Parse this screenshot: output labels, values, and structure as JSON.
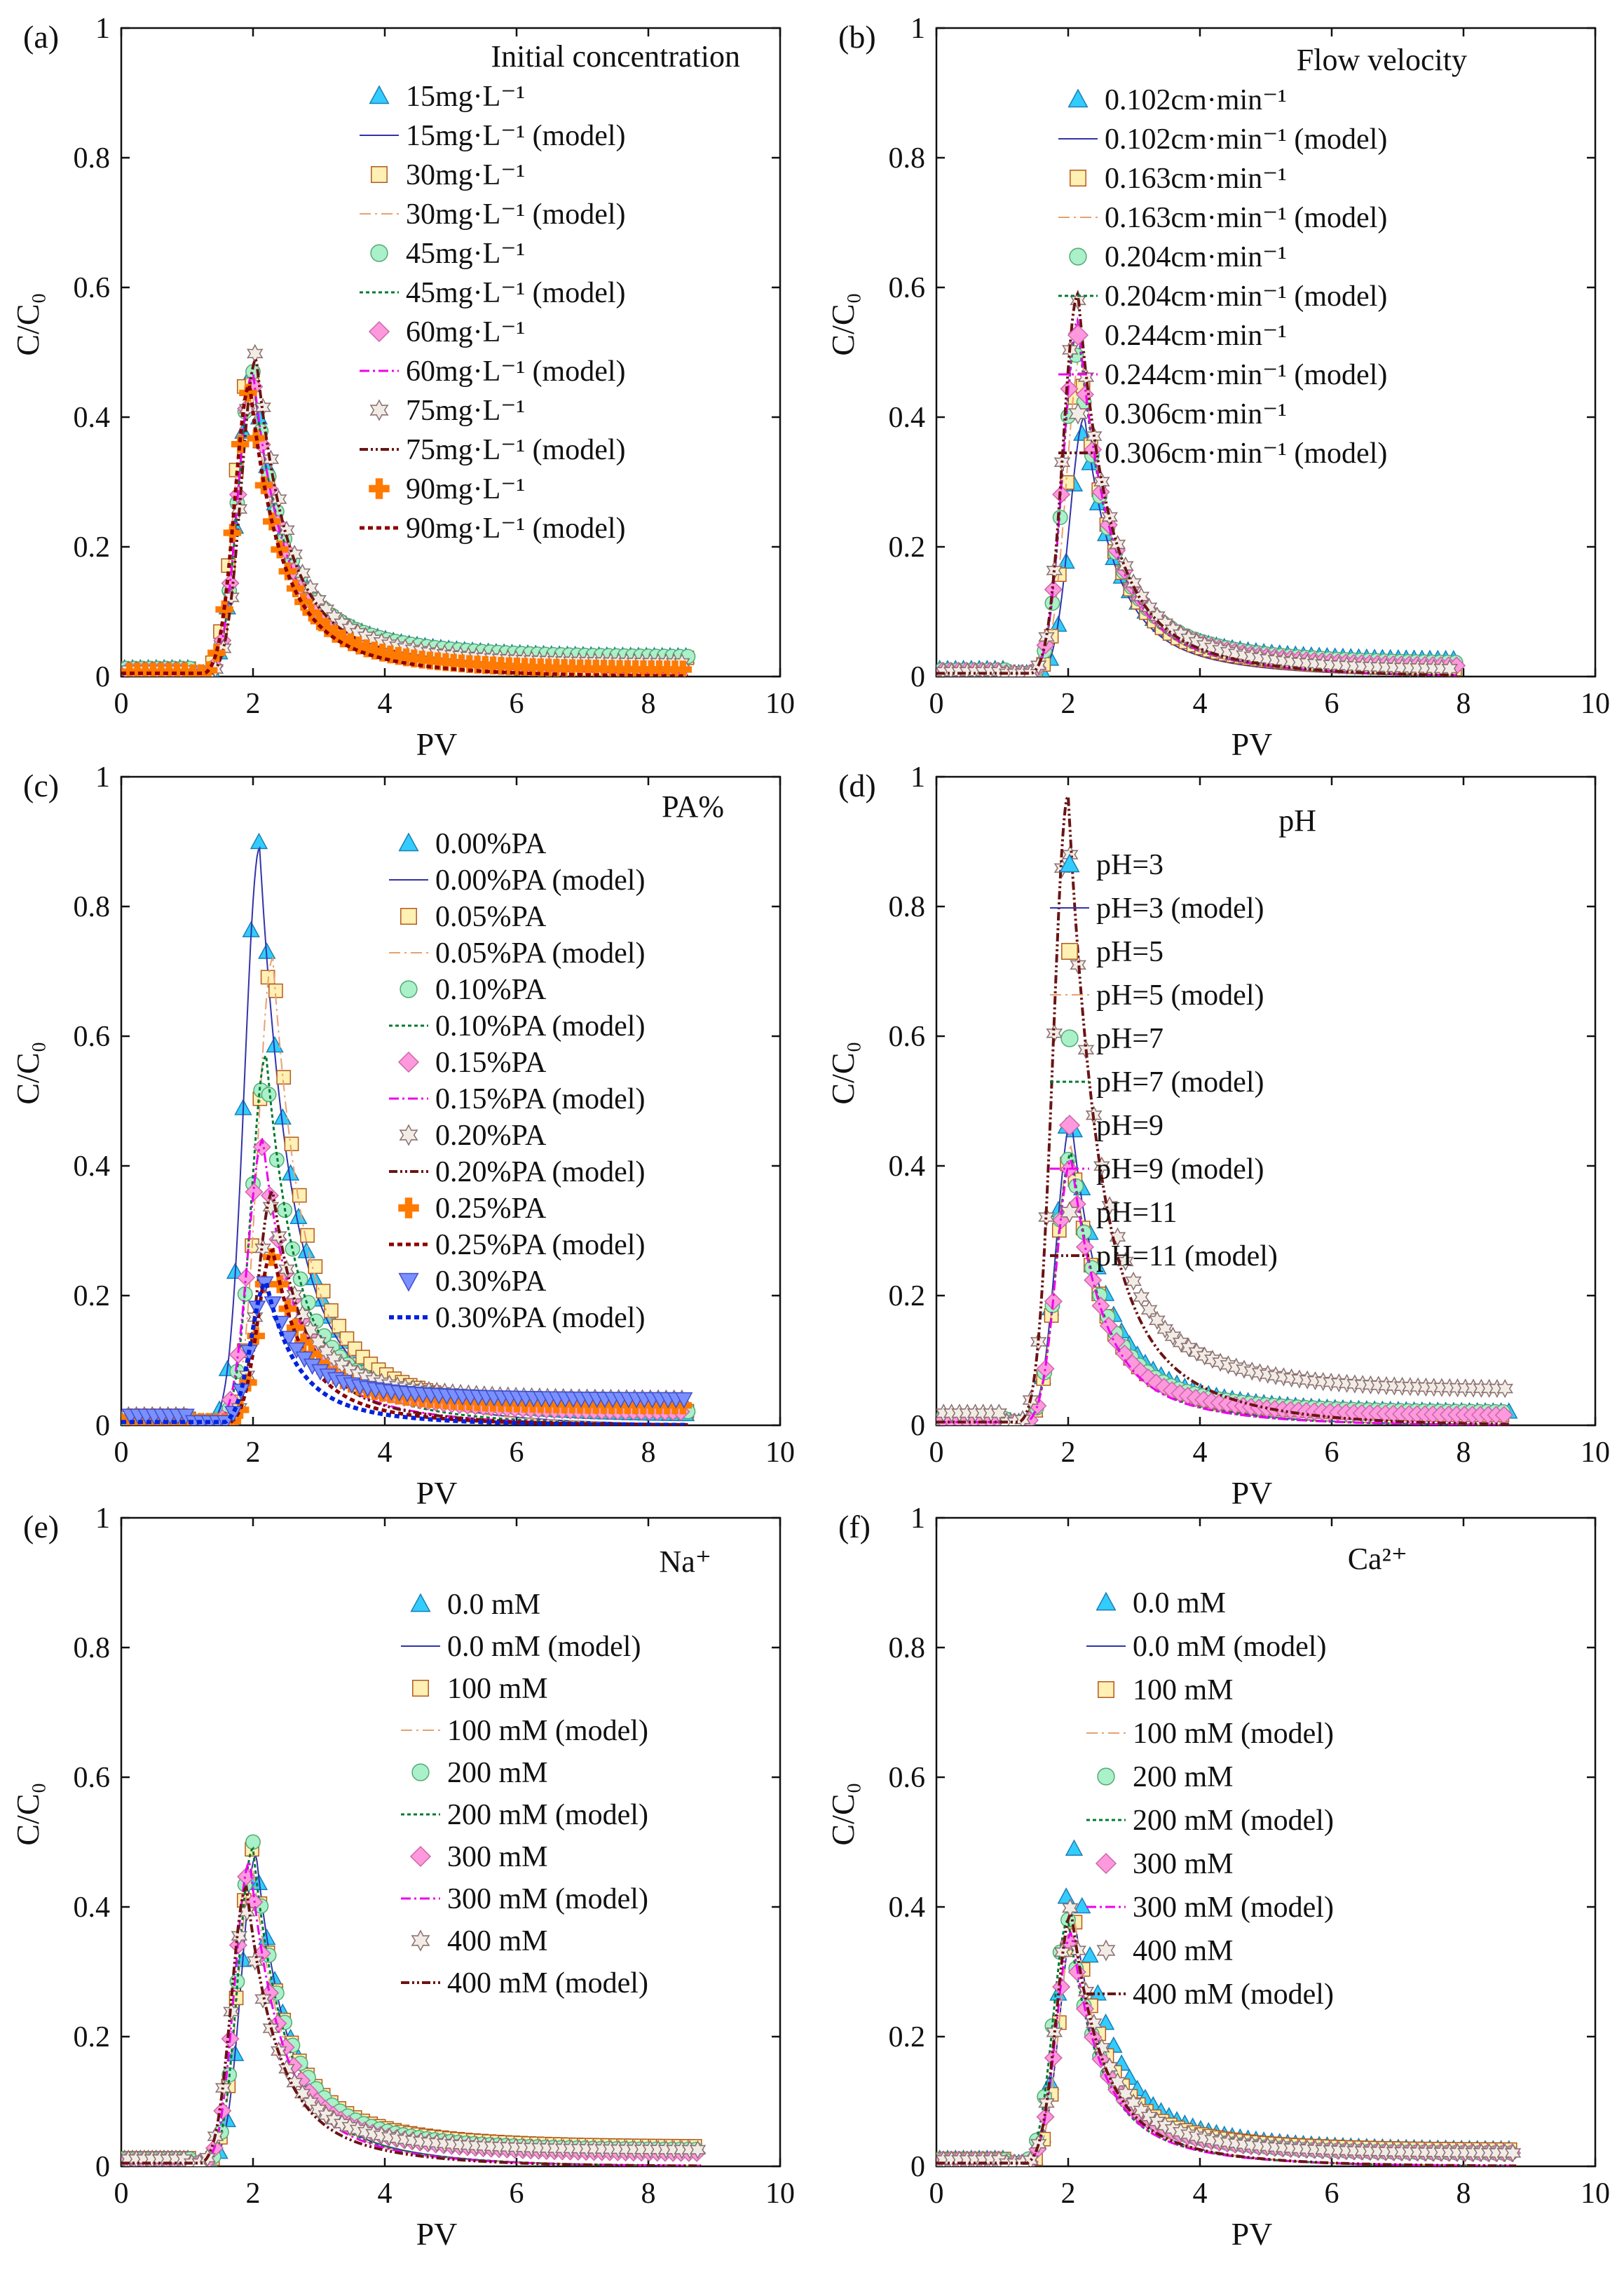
{
  "styles": {
    "s0": {
      "marker": "triangle-up",
      "fill": "#33ccff",
      "stroke": "#1a7fb3",
      "line": "#3333aa",
      "dash": "",
      "width": 2
    },
    "s1": {
      "marker": "square",
      "fill": "#fff0b3",
      "stroke": "#b35a1f",
      "line": "#e8a070",
      "dash": "16 6 3 6",
      "width": 2
    },
    "s2": {
      "marker": "circle",
      "fill": "#aaf0c8",
      "stroke": "#55aa77",
      "line": "#007a33",
      "dash": "5 4",
      "width": 3
    },
    "s3": {
      "marker": "diamond",
      "fill": "#ff99dd",
      "stroke": "#cc66aa",
      "line": "#ee00ee",
      "dash": "14 5 3 5",
      "width": 3
    },
    "s4": {
      "marker": "star",
      "fill": "#f2ece6",
      "stroke": "#8a6f6f",
      "line": "#6b1414",
      "dash": "12 4 3 4 3 4",
      "width": 4
    },
    "s5": {
      "marker": "plus",
      "fill": "#ff7a00",
      "stroke": "#ff7a00",
      "line": "#8b0000",
      "dash": "7 5",
      "width": 5
    },
    "s6": {
      "marker": "triangle-down",
      "fill": "#7a90ff",
      "stroke": "#4050cc",
      "line": "#0022dd",
      "dash": "7 5",
      "width": 6
    }
  },
  "chart_data": [
    {
      "id": "a",
      "panel_label": "(a)",
      "type": "line",
      "xlabel": "PV",
      "ylabel": "C/C₀",
      "xlim": [
        0,
        10
      ],
      "ylim": [
        0,
        1
      ],
      "xticks": [
        0,
        2,
        4,
        6,
        8,
        10
      ],
      "yticks": [
        0,
        0.2,
        0.4,
        0.6,
        0.8,
        1
      ],
      "xtick_labels": [
        "0",
        "2",
        "4",
        "6",
        "8",
        "10"
      ],
      "ytick_labels": [
        "0",
        "0.2",
        "0.4",
        "0.6",
        "0.8",
        "1"
      ],
      "legend_title": "Initial concentration",
      "legend_align": "left",
      "x_end": 8.6,
      "series": [
        {
          "label": "15mg·L⁻¹",
          "model_label": "15mg·L⁻¹ (model)",
          "style": "s0",
          "peak": 0.47,
          "peak_x": 2.0,
          "tail": 0.03,
          "model_peak": 0.46,
          "model_tail": 0.025
        },
        {
          "label": "30mg·L⁻¹",
          "model_label": "30mg·L⁻¹ (model)",
          "style": "s1",
          "peak": 0.48,
          "peak_x": 1.95,
          "tail": 0.028,
          "model_peak": 0.47,
          "model_tail": 0.022
        },
        {
          "label": "45mg·L⁻¹",
          "model_label": "45mg·L⁻¹ (model)",
          "style": "s2",
          "peak": 0.47,
          "peak_x": 2.0,
          "tail": 0.03,
          "model_peak": 0.46,
          "model_tail": 0.025
        },
        {
          "label": "60mg·L⁻¹",
          "model_label": "60mg·L⁻¹ (model)",
          "style": "s3",
          "peak": 0.46,
          "peak_x": 2.0,
          "tail": 0.015,
          "model_peak": 0.47,
          "model_tail": 0.005
        },
        {
          "label": "75mg·L⁻¹",
          "model_label": "75mg·L⁻¹ (model)",
          "style": "s4",
          "peak": 0.5,
          "peak_x": 2.05,
          "tail": 0.02,
          "model_peak": 0.49,
          "model_tail": 0.01
        },
        {
          "label": "90mg·L⁻¹",
          "model_label": "90mg·L⁻¹ (model)",
          "style": "s5",
          "peak": 0.44,
          "peak_x": 1.95,
          "tail": 0.01,
          "model_peak": 0.45,
          "model_tail": 0.0
        }
      ]
    },
    {
      "id": "b",
      "panel_label": "(b)",
      "type": "line",
      "xlabel": "PV",
      "ylabel": "C/C₀",
      "xlim": [
        0,
        10
      ],
      "ylim": [
        0,
        1
      ],
      "xticks": [
        0,
        2,
        4,
        6,
        8,
        10
      ],
      "yticks": [
        0,
        0.2,
        0.4,
        0.6,
        0.8,
        1
      ],
      "xtick_labels": [
        "0",
        "2",
        "4",
        "6",
        "8",
        "10"
      ],
      "ytick_labels": [
        "0",
        "0.2",
        "0.4",
        "0.6",
        "0.8",
        "1"
      ],
      "legend_title": "Flow velocity",
      "legend_align": "left",
      "x_end": 7.9,
      "series": [
        {
          "label": "0.102cm·min⁻¹",
          "model_label": "0.102cm·min⁻¹ (model)",
          "style": "s0",
          "peak": 0.38,
          "peak_x": 2.25,
          "tail": 0.025,
          "model_peak": 0.4,
          "model_tail": 0.0
        },
        {
          "label": "0.163cm·min⁻¹",
          "model_label": "0.163cm·min⁻¹ (model)",
          "style": "s1",
          "peak": 0.47,
          "peak_x": 2.2,
          "tail": 0.01,
          "model_peak": 0.5,
          "model_tail": 0.0
        },
        {
          "label": "0.204cm·min⁻¹",
          "model_label": "0.204cm·min⁻¹ (model)",
          "style": "s2",
          "peak": 0.5,
          "peak_x": 2.15,
          "tail": 0.02,
          "model_peak": 0.54,
          "model_tail": 0.0
        },
        {
          "label": "0.244cm·min⁻¹",
          "model_label": "0.244cm·min⁻¹ (model)",
          "style": "s3",
          "peak": 0.53,
          "peak_x": 2.15,
          "tail": 0.015,
          "model_peak": 0.55,
          "model_tail": 0.0
        },
        {
          "label": "0.306cm·min⁻¹",
          "model_label": "0.306cm·min⁻¹ (model)",
          "style": "s4",
          "peak": 0.58,
          "peak_x": 2.15,
          "tail": 0.01,
          "model_peak": 0.59,
          "model_tail": 0.0
        }
      ]
    },
    {
      "id": "c",
      "panel_label": "(c)",
      "type": "line",
      "xlabel": "PV",
      "ylabel": "C/C₀",
      "xlim": [
        0,
        10
      ],
      "ylim": [
        0,
        1
      ],
      "xticks": [
        0,
        2,
        4,
        6,
        8,
        10
      ],
      "yticks": [
        0,
        0.2,
        0.4,
        0.6,
        0.8,
        1
      ],
      "xtick_labels": [
        "0",
        "2",
        "4",
        "6",
        "8",
        "10"
      ],
      "ytick_labels": [
        "0",
        "0.2",
        "0.4",
        "0.6",
        "0.8",
        "1"
      ],
      "legend_title": "PA%",
      "legend_align": "right",
      "x_end": 8.6,
      "series": [
        {
          "label": "0.00%PA",
          "model_label": "0.00%PA (model)",
          "style": "s0",
          "peak": 0.9,
          "peak_x": 2.1,
          "tail": 0.015,
          "model_peak": 0.89,
          "model_tail": 0.0
        },
        {
          "label": "0.05%PA",
          "model_label": "0.05%PA (model)",
          "style": "s1",
          "peak": 0.73,
          "peak_x": 2.3,
          "tail": 0.02,
          "model_peak": 0.72,
          "model_tail": 0.0
        },
        {
          "label": "0.10%PA",
          "model_label": "0.10%PA (model)",
          "style": "s2",
          "peak": 0.55,
          "peak_x": 2.2,
          "tail": 0.02,
          "model_peak": 0.57,
          "model_tail": 0.0
        },
        {
          "label": "0.15%PA",
          "model_label": "0.15%PA (model)",
          "style": "s3",
          "peak": 0.43,
          "peak_x": 2.15,
          "tail": 0.02,
          "model_peak": 0.44,
          "model_tail": 0.0
        },
        {
          "label": "0.20%PA",
          "model_label": "0.20%PA (model)",
          "style": "s4",
          "peak": 0.34,
          "peak_x": 2.3,
          "tail": 0.04,
          "model_peak": 0.36,
          "model_tail": 0.0
        },
        {
          "label": "0.25%PA",
          "model_label": "0.25%PA (model)",
          "style": "s5",
          "peak": 0.26,
          "peak_x": 2.3,
          "tail": 0.03,
          "model_peak": 0.27,
          "model_tail": 0.0
        },
        {
          "label": "0.30%PA",
          "model_label": "0.30%PA (model)",
          "style": "s6",
          "peak": 0.22,
          "peak_x": 2.2,
          "tail": 0.04,
          "model_peak": 0.22,
          "model_tail": 0.0
        }
      ]
    },
    {
      "id": "d",
      "panel_label": "(d)",
      "type": "line",
      "xlabel": "PV",
      "ylabel": "C/C₀",
      "xlim": [
        0,
        10
      ],
      "ylim": [
        0,
        1
      ],
      "xticks": [
        0,
        2,
        4,
        6,
        8,
        10
      ],
      "yticks": [
        0,
        0.2,
        0.4,
        0.6,
        0.8,
        1
      ],
      "xtick_labels": [
        "0",
        "2",
        "4",
        "6",
        "8",
        "10"
      ],
      "ytick_labels": [
        "0",
        "0.2",
        "0.4",
        "0.6",
        "0.8",
        "1"
      ],
      "legend_title": "pH",
      "legend_align": "left",
      "x_end": 8.7,
      "series": [
        {
          "label": "pH=3",
          "model_label": "pH=3 (model)",
          "style": "s0",
          "peak": 0.49,
          "peak_x": 2.05,
          "tail": 0.02,
          "model_peak": 0.47,
          "model_tail": 0.0
        },
        {
          "label": "pH=5",
          "model_label": "pH=5 (model)",
          "style": "s1",
          "peak": 0.42,
          "peak_x": 2.05,
          "tail": 0.015,
          "model_peak": 0.43,
          "model_tail": 0.0
        },
        {
          "label": "pH=7",
          "model_label": "pH=7 (model)",
          "style": "s2",
          "peak": 0.42,
          "peak_x": 2.05,
          "tail": 0.02,
          "model_peak": 0.42,
          "model_tail": 0.0
        },
        {
          "label": "pH=9",
          "model_label": "pH=9 (model)",
          "style": "s3",
          "peak": 0.4,
          "peak_x": 2.05,
          "tail": 0.015,
          "model_peak": 0.41,
          "model_tail": 0.0
        },
        {
          "label": "pH=11",
          "model_label": "pH=11 (model)",
          "style": "s4",
          "peak": 0.93,
          "peak_x": 2.0,
          "tail": 0.055,
          "model_peak": 0.97,
          "model_tail": 0.0
        }
      ]
    },
    {
      "id": "e",
      "panel_label": "(e)",
      "type": "line",
      "xlabel": "PV",
      "ylabel": "C/C₀",
      "xlim": [
        0,
        10
      ],
      "ylim": [
        0,
        1
      ],
      "xticks": [
        0,
        2,
        4,
        6,
        8,
        10
      ],
      "yticks": [
        0,
        0.2,
        0.4,
        0.6,
        0.8,
        1
      ],
      "xtick_labels": [
        "0",
        "2",
        "4",
        "6",
        "8",
        "10"
      ],
      "ytick_labels": [
        "0",
        "0.2",
        "0.4",
        "0.6",
        "0.8",
        "1"
      ],
      "legend_title": "Na⁺",
      "legend_align": "right",
      "x_end": 8.8,
      "series": [
        {
          "label": "0.0 mM",
          "model_label": "0.0 mM (model)",
          "style": "s0",
          "peak": 0.47,
          "peak_x": 2.05,
          "tail": 0.025,
          "model_peak": 0.48,
          "model_tail": 0.0
        },
        {
          "label": "100 mM",
          "model_label": "100 mM (model)",
          "style": "s1",
          "peak": 0.49,
          "peak_x": 2.0,
          "tail": 0.03,
          "model_peak": 0.46,
          "model_tail": 0.0
        },
        {
          "label": "200 mM",
          "model_label": "200 mM (model)",
          "style": "s2",
          "peak": 0.5,
          "peak_x": 2.0,
          "tail": 0.025,
          "model_peak": 0.49,
          "model_tail": 0.0
        },
        {
          "label": "300 mM",
          "model_label": "300 mM (model)",
          "style": "s3",
          "peak": 0.46,
          "peak_x": 1.95,
          "tail": 0.02,
          "model_peak": 0.47,
          "model_tail": 0.0
        },
        {
          "label": "400 mM",
          "model_label": "400 mM (model)",
          "style": "s4",
          "peak": 0.4,
          "peak_x": 1.9,
          "tail": 0.025,
          "model_peak": 0.43,
          "model_tail": 0.0
        }
      ]
    },
    {
      "id": "f",
      "panel_label": "(f)",
      "type": "line",
      "xlabel": "PV",
      "ylabel": "C/C₀",
      "xlim": [
        0,
        10
      ],
      "ylim": [
        0,
        1
      ],
      "xticks": [
        0,
        2,
        4,
        6,
        8,
        10
      ],
      "yticks": [
        0,
        0.2,
        0.4,
        0.6,
        0.8,
        1
      ],
      "xtick_labels": [
        "0",
        "2",
        "4",
        "6",
        "8",
        "10"
      ],
      "ytick_labels": [
        "0",
        "0.2",
        "0.4",
        "0.6",
        "0.8",
        "1"
      ],
      "legend_title": "Ca²⁺",
      "legend_align": "right",
      "x_end": 8.8,
      "series": [
        {
          "label": "0.0 mM",
          "model_label": "0.0 mM (model)",
          "style": "s0",
          "peak": 0.49,
          "peak_x": 2.1,
          "tail": 0.025,
          "model_peak": 0.38,
          "model_tail": 0.0
        },
        {
          "label": "100 mM",
          "model_label": "100 mM (model)",
          "style": "s1",
          "peak": 0.38,
          "peak_x": 2.1,
          "tail": 0.025,
          "model_peak": 0.38,
          "model_tail": 0.0
        },
        {
          "label": "200 mM",
          "model_label": "200 mM (model)",
          "style": "s2",
          "peak": 0.38,
          "peak_x": 2.0,
          "tail": 0.02,
          "model_peak": 0.38,
          "model_tail": 0.0
        },
        {
          "label": "300 mM",
          "model_label": "300 mM (model)",
          "style": "s3",
          "peak": 0.35,
          "peak_x": 2.05,
          "tail": 0.02,
          "model_peak": 0.36,
          "model_tail": 0.0
        },
        {
          "label": "400 mM",
          "model_label": "400 mM (model)",
          "style": "s4",
          "peak": 0.4,
          "peak_x": 2.05,
          "tail": 0.02,
          "model_peak": 0.39,
          "model_tail": 0.0
        }
      ]
    }
  ]
}
